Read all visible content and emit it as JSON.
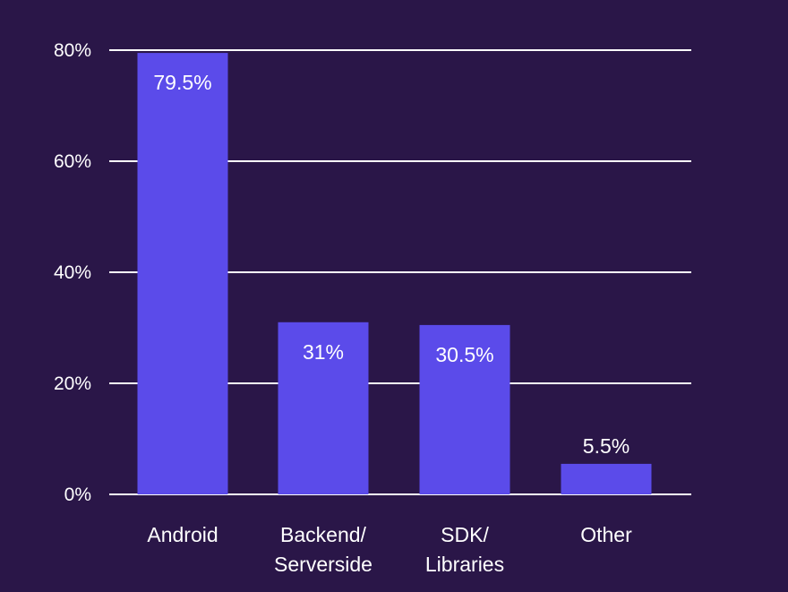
{
  "chart_data": {
    "type": "bar",
    "categories": [
      [
        "Android"
      ],
      [
        "Backend/",
        "Serverside"
      ],
      [
        "SDK/",
        "Libraries"
      ],
      [
        "Other"
      ]
    ],
    "values": [
      79.5,
      31,
      30.5,
      5.5
    ],
    "value_labels": [
      "79.5%",
      "31%",
      "30.5%",
      "5.5%"
    ],
    "ylim": [
      0,
      80
    ],
    "yticks": [
      0,
      20,
      40,
      60,
      80
    ],
    "ytick_labels": [
      "0%",
      "20%",
      "40%",
      "60%",
      "80%"
    ],
    "grid": true,
    "title": "",
    "xlabel": "",
    "ylabel": ""
  },
  "colors": {
    "background": "#2a1648",
    "bar": "#5b4bea",
    "grid": "#ffffff",
    "text": "#ffffff"
  }
}
